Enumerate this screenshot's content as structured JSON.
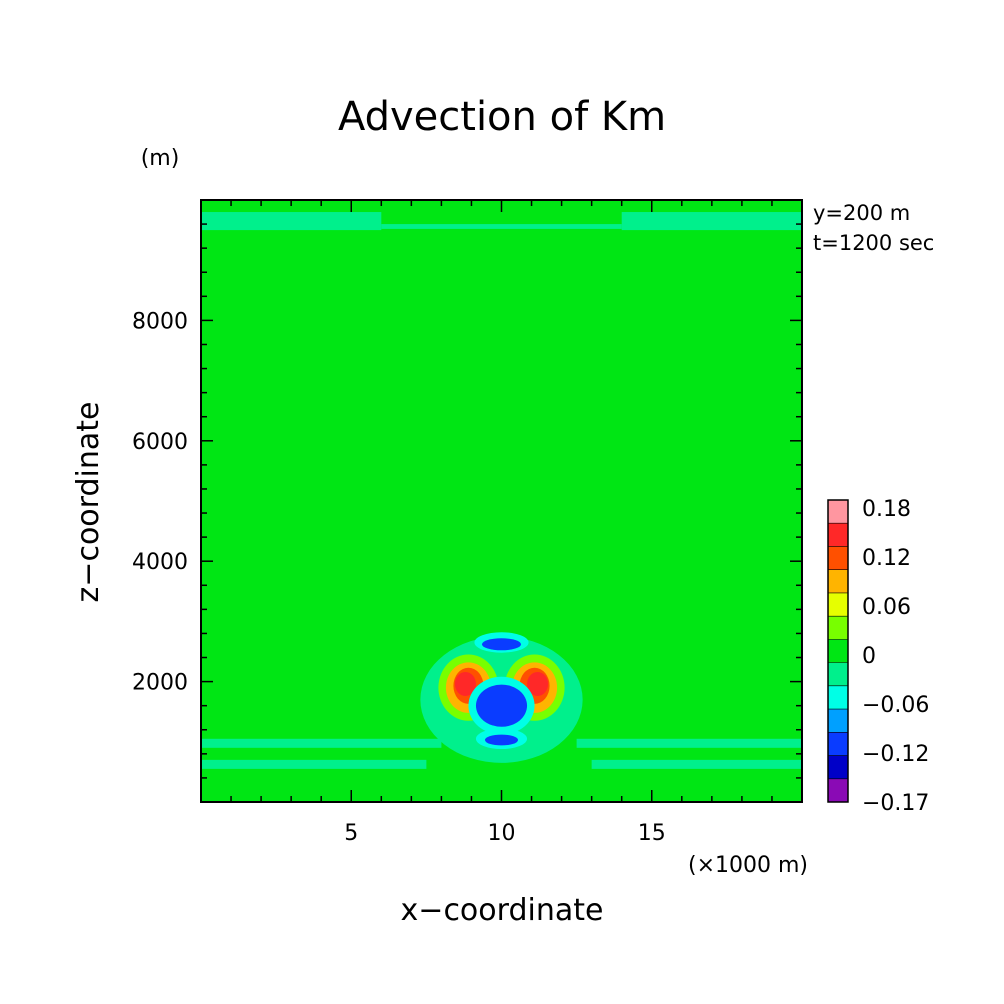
{
  "chart_data": {
    "type": "heatmap",
    "title": "Advection of Km",
    "xlabel": "x−coordinate",
    "ylabel": "z−coordinate",
    "x_unit": "(×1000 m)",
    "y_unit": "(m)",
    "xlim": [
      0,
      20
    ],
    "ylim": [
      0,
      10000
    ],
    "x_ticks": [
      "5",
      "10",
      "15"
    ],
    "y_ticks": [
      "2000",
      "4000",
      "6000",
      "8000"
    ],
    "annotations": [
      "y=200 m",
      "t=1200 sec"
    ],
    "colorbar": {
      "levels": [
        {
          "color": "#8a0ab5"
        },
        {
          "color": "#0000c8"
        },
        {
          "color": "#0a3cff"
        },
        {
          "color": "#00a0ff"
        },
        {
          "color": "#00ffe6"
        },
        {
          "color": "#00f08c"
        },
        {
          "color": "#00e614"
        },
        {
          "color": "#78ff00"
        },
        {
          "color": "#e6ff00"
        },
        {
          "color": "#ffb400"
        },
        {
          "color": "#ff5000"
        },
        {
          "color": "#ff2828"
        },
        {
          "color": "#ff96a0"
        }
      ],
      "labels": [
        "0.18",
        "0.12",
        "0.06",
        "0",
        "−0.06",
        "−0.12",
        "−0.17"
      ]
    },
    "background_level": 0,
    "features": [
      {
        "kind": "band",
        "z": [
          9500,
          9800
        ],
        "x": [
          0,
          6
        ],
        "value": -0.03
      },
      {
        "kind": "band",
        "z": [
          9500,
          9800
        ],
        "x": [
          14,
          20
        ],
        "value": -0.03
      },
      {
        "kind": "band",
        "z": [
          9520,
          9600
        ],
        "x": [
          6,
          14
        ],
        "value": -0.03
      },
      {
        "kind": "band",
        "z": [
          900,
          1050
        ],
        "x": [
          0,
          8
        ],
        "value": -0.03
      },
      {
        "kind": "band",
        "z": [
          550,
          700
        ],
        "x": [
          0,
          7.5
        ],
        "value": -0.03
      },
      {
        "kind": "band",
        "z": [
          900,
          1050
        ],
        "x": [
          12.5,
          20
        ],
        "value": -0.03
      },
      {
        "kind": "band",
        "z": [
          550,
          700
        ],
        "x": [
          13,
          20
        ],
        "value": -0.03
      },
      {
        "kind": "blob",
        "x": 10,
        "z": 1700,
        "rx": 2.7,
        "rz": 1050,
        "value": -0.03
      },
      {
        "kind": "blob",
        "x": 8.9,
        "z": 1900,
        "rx": 1.0,
        "rz": 550,
        "value": 0.03
      },
      {
        "kind": "blob",
        "x": 11.1,
        "z": 1900,
        "rx": 1.0,
        "rz": 550,
        "value": 0.03
      },
      {
        "kind": "blob",
        "x": 8.9,
        "z": 1900,
        "rx": 0.75,
        "rz": 420,
        "value": 0.09
      },
      {
        "kind": "blob",
        "x": 11.1,
        "z": 1900,
        "rx": 0.75,
        "rz": 420,
        "value": 0.09
      },
      {
        "kind": "blob",
        "x": 8.9,
        "z": 1930,
        "rx": 0.5,
        "rz": 300,
        "value": 0.13
      },
      {
        "kind": "blob",
        "x": 11.1,
        "z": 1930,
        "rx": 0.5,
        "rz": 300,
        "value": 0.13
      },
      {
        "kind": "blob",
        "x": 8.8,
        "z": 1960,
        "rx": 0.35,
        "rz": 200,
        "value": 0.16
      },
      {
        "kind": "blob",
        "x": 11.2,
        "z": 1960,
        "rx": 0.35,
        "rz": 200,
        "value": 0.16
      },
      {
        "kind": "blob",
        "x": 10,
        "z": 1600,
        "rx": 1.1,
        "rz": 480,
        "value": -0.05
      },
      {
        "kind": "blob",
        "x": 10,
        "z": 1600,
        "rx": 0.85,
        "rz": 350,
        "value": -0.11
      },
      {
        "kind": "blob",
        "x": 10,
        "z": 1050,
        "rx": 0.85,
        "rz": 170,
        "value": -0.05
      },
      {
        "kind": "blob",
        "x": 10,
        "z": 1030,
        "rx": 0.55,
        "rz": 90,
        "value": -0.11
      },
      {
        "kind": "blob",
        "x": 10,
        "z": 2650,
        "rx": 0.9,
        "rz": 170,
        "value": -0.05
      },
      {
        "kind": "blob",
        "x": 10,
        "z": 2620,
        "rx": 0.65,
        "rz": 100,
        "value": -0.11
      }
    ]
  }
}
